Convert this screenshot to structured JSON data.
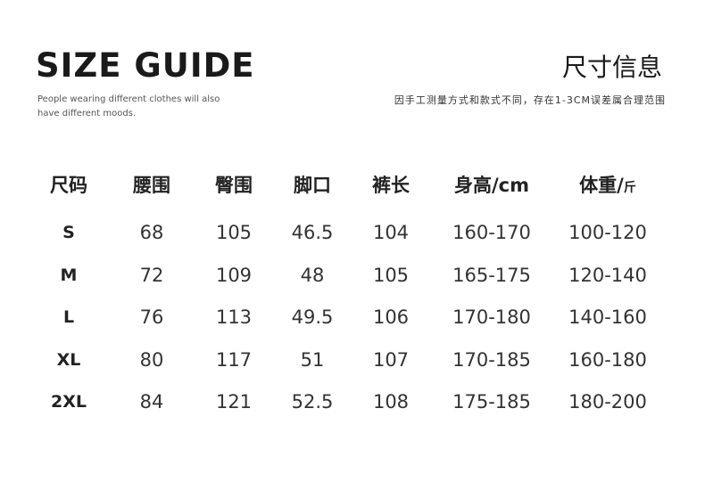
{
  "header": {
    "title": "SIZE GUIDE",
    "subtitle": "People wearing different clothes will also have different moods.",
    "cn_title": "尺寸信息",
    "note": "因手工测量方式和款式不同，存在1-3CM误差属合理范围"
  },
  "table": {
    "columns": [
      "尺码",
      "腰围",
      "臀围",
      "脚口",
      "裤长",
      "身高/cm",
      "体重/"
    ],
    "weight_unit": "斤",
    "rows": [
      [
        "S",
        "68",
        "105",
        "46.5",
        "104",
        "160-170",
        "100-120"
      ],
      [
        "M",
        "72",
        "109",
        "48",
        "105",
        "165-175",
        "120-140"
      ],
      [
        "L",
        "76",
        "113",
        "49.5",
        "106",
        "170-180",
        "140-160"
      ],
      [
        "XL",
        "80",
        "117",
        "51",
        "107",
        "170-185",
        "160-180"
      ],
      [
        "2XL",
        "84",
        "121",
        "52.5",
        "108",
        "175-185",
        "180-200"
      ]
    ]
  }
}
